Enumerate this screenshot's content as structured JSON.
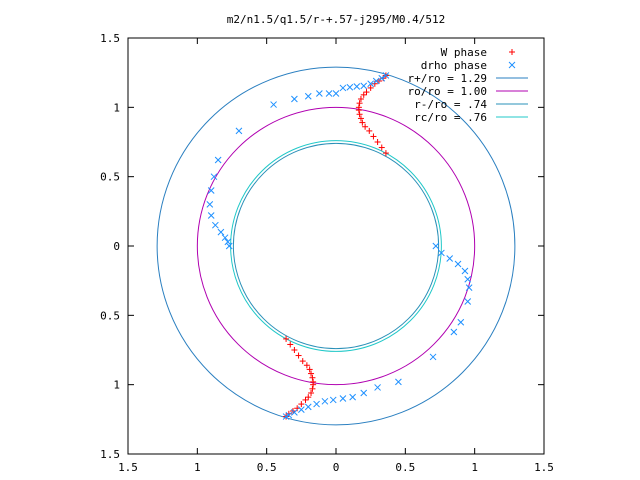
{
  "chart_data": {
    "type": "scatter",
    "title": "m2/n1.5/q1.5/r-+.57-j295/M0.4/512",
    "xlabel": "",
    "ylabel": "",
    "xlim": [
      -1.5,
      1.5
    ],
    "ylim": [
      -1.5,
      1.5
    ],
    "x_ticks": [
      -1.5,
      -1,
      -0.5,
      0,
      0.5,
      1,
      1.5
    ],
    "y_ticks": [
      -1.5,
      -1,
      -0.5,
      0,
      0.5,
      1,
      1.5
    ],
    "x_tick_labels": [
      "1.5",
      "1",
      "0.5",
      "0",
      "0.5",
      "1",
      "1.5"
    ],
    "y_tick_labels": [
      "1.5",
      "1",
      "0.5",
      "0",
      "0.5",
      "1",
      "1.5"
    ],
    "grid": false,
    "legend_position": "top-right",
    "series": [
      {
        "name": "W phase",
        "marker": "+",
        "color": "#ff0000",
        "points": [
          [
            0.18,
            0.92
          ],
          [
            0.17,
            0.95
          ],
          [
            0.165,
            0.98
          ],
          [
            0.165,
            1.0
          ],
          [
            0.17,
            1.03
          ],
          [
            0.18,
            1.06
          ],
          [
            0.2,
            1.09
          ],
          [
            0.22,
            1.11
          ],
          [
            0.25,
            1.14
          ],
          [
            0.28,
            1.17
          ],
          [
            0.31,
            1.19
          ],
          [
            0.34,
            1.21
          ],
          [
            0.36,
            1.23
          ],
          [
            0.19,
            0.89
          ],
          [
            0.21,
            0.86
          ],
          [
            0.24,
            0.83
          ],
          [
            0.27,
            0.79
          ],
          [
            0.3,
            0.75
          ],
          [
            0.33,
            0.71
          ],
          [
            0.36,
            0.67
          ],
          [
            -0.18,
            -0.92
          ],
          [
            -0.17,
            -0.95
          ],
          [
            -0.165,
            -0.98
          ],
          [
            -0.165,
            -1.0
          ],
          [
            -0.17,
            -1.03
          ],
          [
            -0.18,
            -1.06
          ],
          [
            -0.2,
            -1.09
          ],
          [
            -0.22,
            -1.11
          ],
          [
            -0.25,
            -1.14
          ],
          [
            -0.28,
            -1.17
          ],
          [
            -0.31,
            -1.19
          ],
          [
            -0.34,
            -1.21
          ],
          [
            -0.36,
            -1.23
          ],
          [
            -0.19,
            -0.89
          ],
          [
            -0.21,
            -0.86
          ],
          [
            -0.24,
            -0.83
          ],
          [
            -0.27,
            -0.79
          ],
          [
            -0.3,
            -0.75
          ],
          [
            -0.33,
            -0.71
          ],
          [
            -0.36,
            -0.67
          ]
        ]
      },
      {
        "name": "drho phase",
        "marker": "x",
        "color": "#1e90ff",
        "points": [
          [
            0.36,
            1.23
          ],
          [
            0.33,
            1.21
          ],
          [
            0.29,
            1.19
          ],
          [
            0.25,
            1.17
          ],
          [
            0.2,
            1.155
          ],
          [
            0.15,
            1.15
          ],
          [
            0.1,
            1.145
          ],
          [
            0.05,
            1.14
          ],
          [
            0.0,
            1.1
          ],
          [
            -0.05,
            1.1
          ],
          [
            -0.12,
            1.1
          ],
          [
            -0.2,
            1.08
          ],
          [
            -0.3,
            1.06
          ],
          [
            -0.45,
            1.02
          ],
          [
            -0.7,
            0.83
          ],
          [
            -0.85,
            0.62
          ],
          [
            -0.88,
            0.5
          ],
          [
            -0.9,
            0.4
          ],
          [
            -0.91,
            0.3
          ],
          [
            -0.9,
            0.22
          ],
          [
            -0.87,
            0.15
          ],
          [
            -0.83,
            0.1
          ],
          [
            -0.8,
            0.06
          ],
          [
            -0.78,
            0.03
          ],
          [
            -0.77,
            0.0
          ],
          [
            0.72,
            0.0
          ],
          [
            0.76,
            -0.05
          ],
          [
            0.82,
            -0.09
          ],
          [
            0.88,
            -0.13
          ],
          [
            0.93,
            -0.18
          ],
          [
            0.95,
            -0.24
          ],
          [
            0.96,
            -0.3
          ],
          [
            0.95,
            -0.4
          ],
          [
            0.9,
            -0.55
          ],
          [
            0.85,
            -0.62
          ],
          [
            0.7,
            -0.8
          ],
          [
            0.45,
            -0.98
          ],
          [
            0.3,
            -1.02
          ],
          [
            0.2,
            -1.06
          ],
          [
            0.12,
            -1.09
          ],
          [
            0.05,
            -1.1
          ],
          [
            -0.02,
            -1.11
          ],
          [
            -0.08,
            -1.12
          ],
          [
            -0.14,
            -1.14
          ],
          [
            -0.2,
            -1.16
          ],
          [
            -0.25,
            -1.18
          ],
          [
            -0.3,
            -1.2
          ],
          [
            -0.34,
            -1.22
          ],
          [
            -0.36,
            -1.23
          ]
        ]
      }
    ],
    "circles": [
      {
        "name": "r+/ro = 1.29",
        "radius": 1.29,
        "color": "#2a7fc0"
      },
      {
        "name": "ro/ro = 1.00",
        "radius": 1.0,
        "color": "#b000b0"
      },
      {
        "name": "r-/ro = .74",
        "radius": 0.74,
        "color": "#2a90b8"
      },
      {
        "name": "rc/ro = .76",
        "radius": 0.76,
        "color": "#20c8c8"
      }
    ]
  }
}
